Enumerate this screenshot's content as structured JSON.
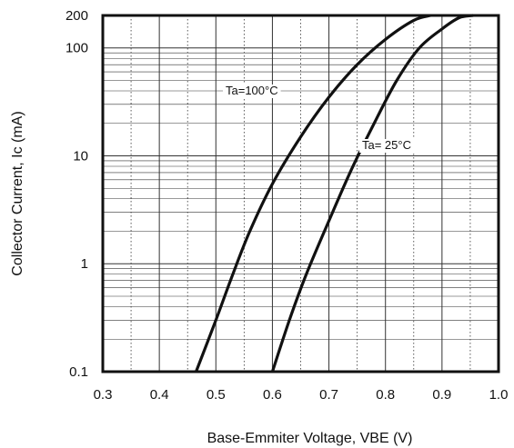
{
  "chart_data": {
    "type": "line",
    "xlabel": "Base-Emmiter Voltage, VBE (V)",
    "ylabel": "Collector Current, Ic (mA)",
    "xlim": [
      0.3,
      1.0
    ],
    "ylim": [
      0.1,
      200
    ],
    "yscale": "log",
    "grid": true,
    "x_ticks": [
      0.3,
      0.4,
      0.5,
      0.6,
      0.7,
      0.8,
      0.9,
      1.0
    ],
    "x_tick_labels": [
      "0.3",
      "0.4",
      "0.5",
      "0.6",
      "0.7",
      "0.8",
      "0.9",
      "1.0"
    ],
    "y_ticks": [
      0.1,
      1,
      10,
      100,
      200
    ],
    "y_tick_labels": [
      "0.1",
      "1",
      "10",
      "100",
      "200"
    ],
    "series": [
      {
        "name": "Ta=100°C",
        "x": [
          0.465,
          0.5,
          0.53,
          0.56,
          0.6,
          0.65,
          0.7,
          0.75,
          0.8,
          0.85,
          0.88
        ],
        "y": [
          0.1,
          0.3,
          0.8,
          2.0,
          5.5,
          15,
          35,
          70,
          120,
          180,
          200
        ]
      },
      {
        "name": "Ta= 25°C",
        "x": [
          0.6,
          0.63,
          0.66,
          0.7,
          0.74,
          0.78,
          0.82,
          0.86,
          0.9,
          0.93,
          0.955
        ],
        "y": [
          0.1,
          0.3,
          0.8,
          2.5,
          7.5,
          20,
          50,
          100,
          150,
          190,
          200
        ]
      }
    ],
    "annotations": [
      {
        "text": "Ta=100°C",
        "series": 0
      },
      {
        "text": "Ta= 25°C",
        "series": 1
      }
    ]
  }
}
